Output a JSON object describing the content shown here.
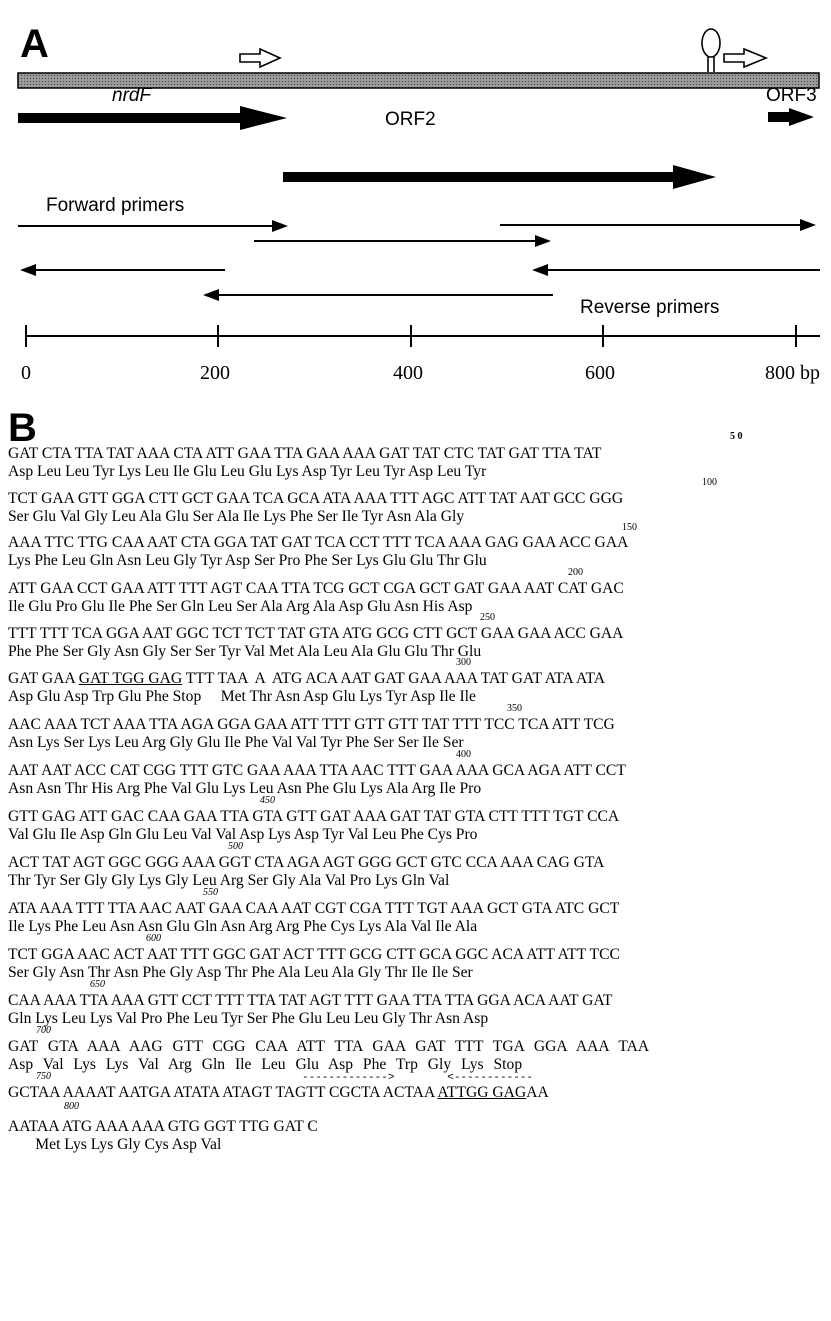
{
  "panel_a": {
    "letter": "A",
    "genes": [
      {
        "label": "nrdF"
      },
      {
        "label": "ORF2"
      },
      {
        "label": "ORF3"
      }
    ],
    "forward_primers_label": "Forward primers",
    "reverse_primers_label": "Reverse primers",
    "scale_ticks": [
      "0",
      "200",
      "400",
      "600",
      "800 bp"
    ]
  },
  "panel_b": {
    "letter": "B",
    "rows": [
      {
        "num": "5 0",
        "nt": "GAT CTA TTA TAT AAA CTA ATT GAA TTA GAA AAA GAT TAT CTC TAT GAT TTA TAT",
        "aa": "Asp Leu Leu Tyr Lys Leu Ile Glu Leu Glu Lys Asp Tyr Leu Tyr Asp Leu Tyr"
      },
      {
        "num": "100",
        "nt": "TCT GAA GTT GGA CTT GCT GAA TCA GCA ATA AAA TTT AGC ATT TAT AAT GCC GGG",
        "aa": "Ser Glu Val Gly Leu Ala Glu Ser Ala Ile Lys Phe Ser Ile Tyr Asn Ala Gly"
      },
      {
        "num": "150",
        "nt": "AAA TTC TTG CAA AAT CTA GGA TAT GAT TCA CCT TTT TCA AAA GAG GAA ACC GAA",
        "aa": "Lys Phe Leu Gln Asn Leu Gly Tyr Asp Ser Pro Phe Ser Lys Glu Glu Thr Glu"
      },
      {
        "num": "200",
        "nt": "ATT GAA CCT GAA ATT TTT AGT CAA TTA TCG GCT CGA GCT GAT GAA AAT CAT GAC",
        "aa": "Ile Glu Pro Glu Ile Phe Ser Gln Leu Ser Ala Arg Ala Asp Glu Asn His Asp"
      },
      {
        "num": "250",
        "nt": "TTT TTT TCA GGA AAT GGC TCT TCT TAT GTA ATG GCG CTT GCT GAA GAA ACC GAA",
        "aa": "Phe Phe Ser Gly Asn Gly Ser Ser Tyr Val Met Ala Leu Ala Glu Glu Thr Glu"
      },
      {
        "num": "300",
        "nt_pre": "GAT GAA ",
        "nt_ul": "GAT TGG GAG",
        "nt_post": " TTT TAA  A  ATG ACA AAT GAT GAA AAA TAT GAT ATA ATA",
        "aa": "Asp Glu Asp Trp Glu Phe Stop     Met Thr Asn Asp Glu Lys Tyr Asp Ile Ile"
      },
      {
        "num": "350",
        "nt": "AAC AAA TCT AAA TTA AGA GGA GAA ATT TTT GTT GTT TAT TTT TCC TCA ATT TCG",
        "aa": "Asn Lys Ser Lys Leu Arg Gly Glu Ile Phe Val Val Tyr Phe Ser Ser Ile Ser"
      },
      {
        "num": "400",
        "nt": "AAT AAT ACC CAT CGG TTT GTC GAA AAA TTA AAC TTT GAA AAA GCA AGA ATT CCT",
        "aa": "Asn Asn Thr His Arg Phe Val Glu Lys Leu Asn Phe Glu Lys Ala Arg Ile Pro"
      },
      {
        "num": "450",
        "nt": "GTT GAG ATT GAC CAA GAA TTA GTA GTT GAT AAA GAT TAT GTA CTT TTT TGT CCA",
        "aa": "Val Glu Ile Asp Gln Glu Leu Val Val Asp Lys Asp Tyr Val Leu Phe Cys Pro"
      },
      {
        "num": "500",
        "nt": "ACT TAT AGT GGC GGG AAA GGT CTA AGA AGT GGG GCT GTC CCA AAA CAG GTA",
        "aa": "Thr Tyr Ser Gly Gly Lys Gly Leu Arg Ser Gly Ala Val Pro Lys Gln Val"
      },
      {
        "num": "550",
        "nt": "ATA AAA TTT TTA AAC AAT GAA CAA AAT CGT CGA TTT TGT AAA GCT GTA ATC GCT",
        "aa": "Ile Lys Phe Leu Asn Asn Glu Gln Asn Arg Arg Phe Cys Lys Ala Val Ile Ala"
      },
      {
        "num": "600",
        "nt": "TCT GGA AAC ACT AAT TTT GGC GAT ACT TTT GCG CTT GCA GGC ACA ATT ATT TCC",
        "aa": "Ser Gly Asn Thr Asn Phe Gly Asp Thr Phe Ala Leu Ala Gly Thr Ile Ile Ser"
      },
      {
        "num": "650",
        "nt": "CAA AAA TTA AAA GTT CCT TTT TTA TAT AGT TTT GAA TTA TTA GGA ACA AAT GAT",
        "aa": "Gln Lys Leu Lys Val Pro Phe Leu Tyr Ser Phe Glu Leu Leu Gly Thr Asn Asp"
      },
      {
        "num": "700",
        "nt": "GAT GTA AAA AAG GTT CGG CAA ATT TTA GAA GAT TTT TGA GGA AAA TAA",
        "aa": "Asp Val Lys Lys Val Arg Gln Ile Leu Glu Asp Phe Trp Gly Lys Stop"
      },
      {
        "num": "750",
        "nt_pre": "GCTAA AAAAT AATGA ATATA ATAGT TAGTT CGCTA ACTAA ",
        "nt_ul": "ATTGG GAG",
        "nt_post": "AA",
        "arrows": "------------->        <------------"
      },
      {
        "num": "800",
        "nt": "AATAA ATG AAA AAA GTG GGT TTG GAT C",
        "aa": "       Met Lys Lys Gly Cys Asp Val"
      }
    ]
  }
}
